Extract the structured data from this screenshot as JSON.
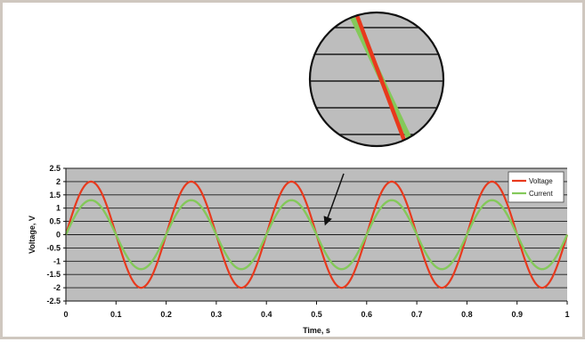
{
  "chart_data": {
    "type": "line",
    "xlabel": "Time, s",
    "ylabel": "Voltage, V",
    "xlim": [
      0,
      1
    ],
    "ylim": [
      -2.5,
      2.5
    ],
    "x_ticks": [
      "0",
      "0.1",
      "0.2",
      "0.3",
      "0.4",
      "0.5",
      "0.6",
      "0.7",
      "0.8",
      "0.9",
      "1"
    ],
    "y_ticks": [
      "2.5",
      "2",
      "1.5",
      "1",
      "0.5",
      "0",
      "-0.5",
      "-1",
      "-1.5",
      "-2",
      "-2.5"
    ],
    "grid": "horizontal",
    "legend_position": "right",
    "plot_background": "#bdbdbd",
    "series": [
      {
        "name": "Voltage",
        "color": "#e8391d",
        "x": [
          0,
          0.025,
          0.05,
          0.075,
          0.1,
          0.125,
          0.15,
          0.175,
          0.2,
          0.225,
          0.25,
          0.275,
          0.3,
          0.325,
          0.35,
          0.375,
          0.4,
          0.425,
          0.45,
          0.475,
          0.5,
          0.525,
          0.55,
          0.575,
          0.6,
          0.625,
          0.65,
          0.675,
          0.7,
          0.725,
          0.75,
          0.775,
          0.8,
          0.825,
          0.85,
          0.875,
          0.9,
          0.925,
          0.95,
          0.975,
          1
        ],
        "values": [
          0,
          1.41,
          2,
          1.41,
          0,
          -1.41,
          -2,
          -1.41,
          0,
          1.41,
          2,
          1.41,
          0,
          -1.41,
          -2,
          -1.41,
          0,
          1.41,
          2,
          1.41,
          0,
          -1.41,
          -2,
          -1.41,
          0,
          1.41,
          2,
          1.41,
          0,
          -1.41,
          -2,
          -1.41,
          0,
          1.41,
          2,
          1.41,
          0,
          -1.41,
          -2,
          -1.41,
          0
        ]
      },
      {
        "name": "Current",
        "color": "#84c95a",
        "x": [
          0,
          0.025,
          0.05,
          0.075,
          0.1,
          0.125,
          0.15,
          0.175,
          0.2,
          0.225,
          0.25,
          0.275,
          0.3,
          0.325,
          0.35,
          0.375,
          0.4,
          0.425,
          0.45,
          0.475,
          0.5,
          0.525,
          0.55,
          0.575,
          0.6,
          0.625,
          0.65,
          0.675,
          0.7,
          0.725,
          0.75,
          0.775,
          0.8,
          0.825,
          0.85,
          0.875,
          0.9,
          0.925,
          0.95,
          0.975,
          1
        ],
        "values": [
          0,
          0.92,
          1.3,
          0.92,
          0,
          -0.92,
          -1.3,
          -0.92,
          0,
          0.92,
          1.3,
          0.92,
          0,
          -0.92,
          -1.3,
          -0.92,
          0,
          0.92,
          1.3,
          0.92,
          0,
          -0.92,
          -1.3,
          -0.92,
          0,
          0.92,
          1.3,
          0.92,
          0,
          -0.92,
          -1.3,
          -0.92,
          0,
          0.92,
          1.3,
          0.92,
          0,
          -0.92,
          -1.3,
          -0.92,
          0
        ]
      }
    ],
    "inset": {
      "type": "magnifier",
      "points_at": [
        0.5,
        0
      ],
      "description_visible": false
    }
  }
}
